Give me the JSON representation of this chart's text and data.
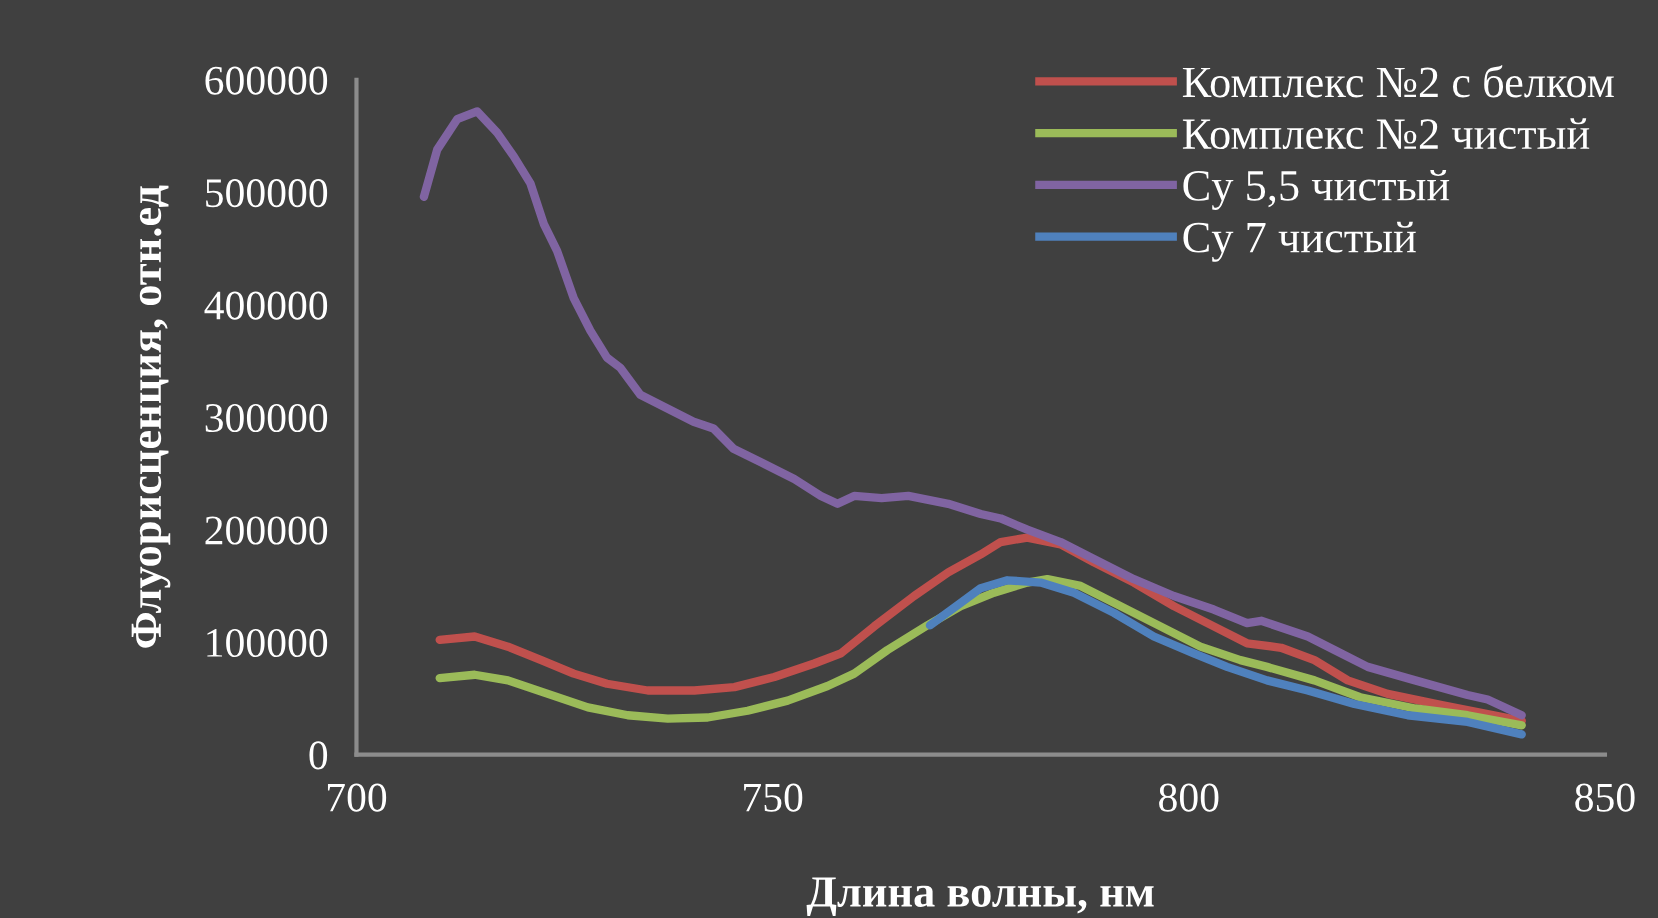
{
  "chart_data": {
    "type": "line",
    "xlabel": "Длина волны, нм",
    "ylabel": "Флуорисценция, отн.ед",
    "xlim": [
      700,
      850
    ],
    "xticks": [
      700,
      750,
      800,
      850
    ],
    "ylim": [
      0,
      600000
    ],
    "yticks": [
      0,
      100000,
      200000,
      300000,
      400000,
      500000,
      600000
    ],
    "grid": false,
    "legend": "top right",
    "marker": "none",
    "line_style": "solid",
    "series": [
      {
        "name": "Комплекс №2 с белком",
        "color": "#c0504d",
        "x": [
          710,
          714.2,
          718.2,
          722.2,
          726.1,
          730.1,
          735,
          740.6,
          745.4,
          750.2,
          755,
          758.2,
          762.2,
          767,
          771.1,
          775,
          777.4,
          780.6,
          784.6,
          788.6,
          793.4,
          798.2,
          803,
          807,
          811.1,
          815.1,
          819.1,
          823.9,
          830.4,
          835.9,
          840
        ],
        "values": [
          102000,
          105000,
          96000,
          84000,
          72000,
          63000,
          57000,
          57000,
          60000,
          69000,
          81000,
          90000,
          114000,
          141000,
          162000,
          178000,
          189000,
          193000,
          187000,
          171000,
          153000,
          132000,
          114000,
          99000,
          95000,
          84000,
          66000,
          54000,
          44000,
          36000,
          30000
        ]
      },
      {
        "name": "Комплекс №2 чистый",
        "color": "#9bbb59",
        "x": [
          710,
          714.2,
          718.2,
          723,
          727.8,
          732.6,
          737.4,
          742.2,
          747,
          751.8,
          756.6,
          759.8,
          763.8,
          768.6,
          772.6,
          776.6,
          780.6,
          783,
          787,
          791.8,
          796.6,
          801.4,
          806.2,
          809.4,
          815.1,
          820.6,
          827.2,
          833.5,
          840
        ],
        "values": [
          68000,
          71000,
          66000,
          54000,
          42000,
          35000,
          32000,
          33000,
          39000,
          48000,
          61000,
          72000,
          93000,
          115000,
          132000,
          144000,
          153000,
          156000,
          150000,
          132000,
          114000,
          96000,
          84000,
          78000,
          66000,
          51000,
          41000,
          35000,
          26000
        ]
      },
      {
        "name": "Cy 5,5 чистый",
        "color": "#8064a2",
        "x": [
          708.1,
          709.7,
          712.1,
          714.5,
          716.9,
          718.9,
          720.9,
          722.5,
          724.1,
          726.1,
          728.1,
          730.1,
          731.7,
          734.1,
          737.3,
          740.5,
          742.9,
          745.3,
          748.6,
          752.6,
          755.8,
          757.8,
          759.8,
          763.1,
          766.3,
          771.1,
          775,
          777.4,
          780.6,
          784.6,
          788.6,
          793.4,
          798.2,
          803,
          807,
          808.7,
          814.3,
          817.5,
          821.5,
          827.2,
          833.5,
          835.9,
          840
        ],
        "values": [
          496000,
          538000,
          565000,
          572000,
          553000,
          532000,
          508000,
          472000,
          448000,
          406000,
          377000,
          353000,
          344000,
          320000,
          308000,
          296000,
          290000,
          272000,
          260000,
          245000,
          230000,
          223000,
          230000,
          228000,
          230000,
          223000,
          214000,
          210000,
          200000,
          189000,
          174000,
          156000,
          141000,
          129000,
          117000,
          119000,
          105000,
          93000,
          78000,
          66000,
          53000,
          49000,
          35000
        ]
      },
      {
        "name": "Cy 7 чистый",
        "color": "#4f81bd",
        "x": [
          768.9,
          772.6,
          775,
          778.2,
          782.2,
          786.2,
          791,
          795.8,
          800.6,
          804.6,
          809.4,
          814.3,
          819.9,
          826.3,
          833.5,
          840
        ],
        "values": [
          115000,
          135000,
          148000,
          155000,
          153000,
          144000,
          126000,
          105000,
          90000,
          78000,
          66000,
          57000,
          45000,
          35000,
          29000,
          18000
        ]
      }
    ]
  }
}
